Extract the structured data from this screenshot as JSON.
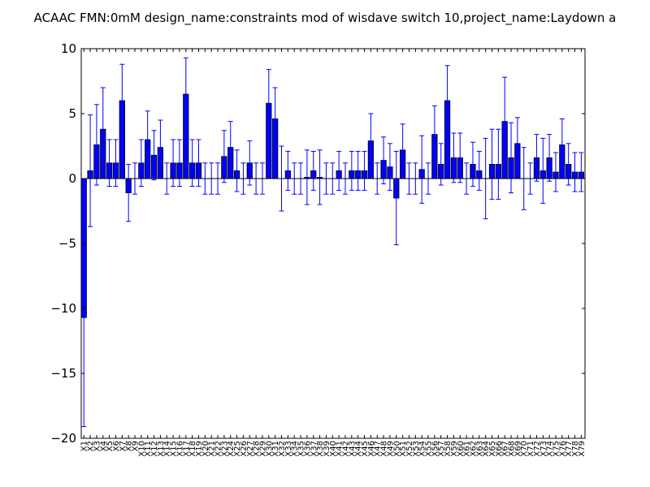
{
  "chart_data": {
    "type": "bar",
    "title": "ACAAC  FMN:0mM  design_name:constraints mod of wisdave switch 10,project_name:Laydown a",
    "xlabel": "",
    "ylabel": "",
    "ylim": [
      -20,
      10
    ],
    "yticks": [
      "10",
      "5",
      "0",
      "−5",
      "−10",
      "−15",
      "−20"
    ],
    "ytick_values": [
      10,
      5,
      0,
      -5,
      -10,
      -15,
      -20
    ],
    "grid": false,
    "bar_color": "#0000ff",
    "error_color": "#0000ff",
    "categories": [
      "X1",
      "X2",
      "X3",
      "X4",
      "X5",
      "X6",
      "X7",
      "X8",
      "X9",
      "X10",
      "X11",
      "X12",
      "X13",
      "X14",
      "X15",
      "X16",
      "X17",
      "X18",
      "X19",
      "X20",
      "X21",
      "X22",
      "X23",
      "X24",
      "X25",
      "X26",
      "X27",
      "X28",
      "X29",
      "X30",
      "X31",
      "X32",
      "X33",
      "X34",
      "X35",
      "X36",
      "X37",
      "X38",
      "X39",
      "X40",
      "X41",
      "X42",
      "X43",
      "X44",
      "X45",
      "X46",
      "X47",
      "X48",
      "X49",
      "X50",
      "X51",
      "X52",
      "X53",
      "X54",
      "X55",
      "X56",
      "X57",
      "X58",
      "X59",
      "X60",
      "X61",
      "X62",
      "X63",
      "X64",
      "X65",
      "X66",
      "X67",
      "X68",
      "X69",
      "X70",
      "X71",
      "X72",
      "X73",
      "X74",
      "X75",
      "X76",
      "X77",
      "X78",
      "X79"
    ],
    "values": [
      -10.7,
      0.6,
      2.6,
      3.8,
      1.2,
      1.2,
      6.0,
      -1.1,
      0.0,
      1.2,
      3.0,
      1.8,
      2.4,
      0.0,
      1.2,
      1.2,
      6.5,
      1.2,
      1.2,
      0.0,
      0.0,
      0.0,
      1.7,
      2.4,
      0.6,
      0.0,
      1.2,
      0.0,
      0.0,
      5.8,
      4.6,
      0.0,
      0.6,
      0.0,
      0.0,
      0.1,
      0.6,
      0.1,
      0.0,
      0.0,
      0.6,
      0.0,
      0.6,
      0.6,
      0.6,
      2.9,
      0.0,
      1.4,
      0.9,
      -1.5,
      2.2,
      0.0,
      0.0,
      0.7,
      0.0,
      3.4,
      1.1,
      6.0,
      1.6,
      1.6,
      0.0,
      1.1,
      0.6,
      0.0,
      1.1,
      1.1,
      4.4,
      1.6,
      2.7,
      0.0,
      0.0,
      1.6,
      0.6,
      1.6,
      0.5,
      2.6,
      1.1,
      0.5,
      0.5
    ],
    "errors": [
      8.4,
      4.3,
      3.1,
      3.2,
      1.8,
      1.8,
      2.8,
      2.2,
      1.2,
      1.8,
      2.2,
      1.9,
      2.1,
      1.2,
      1.8,
      1.8,
      2.8,
      1.8,
      1.8,
      1.2,
      1.2,
      1.2,
      2.0,
      2.0,
      1.6,
      1.2,
      1.7,
      1.2,
      1.2,
      2.6,
      2.4,
      2.5,
      1.5,
      1.2,
      1.2,
      2.1,
      1.5,
      2.1,
      1.2,
      1.2,
      1.5,
      1.2,
      1.5,
      1.5,
      1.5,
      2.1,
      1.2,
      1.8,
      1.8,
      3.6,
      2.0,
      1.2,
      1.2,
      2.6,
      1.2,
      2.2,
      1.6,
      2.7,
      1.9,
      1.9,
      1.2,
      1.7,
      1.5,
      3.1,
      2.7,
      2.7,
      3.4,
      2.7,
      2.0,
      2.4,
      1.2,
      1.8,
      2.5,
      1.8,
      1.5,
      2.0,
      1.6,
      1.5,
      1.5
    ]
  }
}
